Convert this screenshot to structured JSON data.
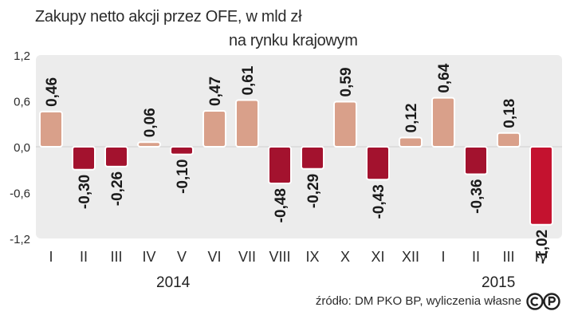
{
  "chart_data": {
    "type": "bar",
    "title": "Zakupy netto  akcji przez OFE, w mld zł",
    "subtitle": "na rynku krajowym",
    "categories": [
      "I",
      "II",
      "III",
      "IV",
      "V",
      "VI",
      "VII",
      "VIII",
      "IX",
      "X",
      "XI",
      "XII",
      "I",
      "II",
      "III",
      "IV"
    ],
    "values": [
      0.46,
      -0.3,
      -0.26,
      0.06,
      -0.1,
      0.47,
      0.61,
      -0.48,
      -0.29,
      0.59,
      -0.43,
      0.12,
      0.64,
      -0.36,
      0.18,
      -1.02
    ],
    "value_labels": [
      "0,46",
      "-0,30",
      "-0,26",
      "0,06",
      "-0,10",
      "0,47",
      "0,61",
      "-0,48",
      "-0,29",
      "0,59",
      "-0,43",
      "0,12",
      "0,64",
      "-0,36",
      "0,18",
      "-1,02"
    ],
    "year_groups": [
      "2014",
      "2015"
    ],
    "ylim": [
      -1.2,
      1.2
    ],
    "yticks": [
      1.2,
      0.6,
      0.0,
      -0.6,
      -1.2
    ],
    "ytick_labels": [
      "1,2",
      "0,6",
      "0,0",
      "-0,6",
      "-1,2"
    ],
    "grid": false,
    "colors": {
      "positive_fill": "#d9a08a",
      "positive_stroke": "#ffffff",
      "negative_fill": "#a3122e",
      "negative_stroke": "#ffffff",
      "last_negative_fill": "#c4122f",
      "plot_background": "#ececec",
      "label_text": "#1a1a1a"
    }
  },
  "footer": {
    "source": "źródło: DM PKO BP, wyliczenia własne",
    "license_icon": "cc-by-icon"
  }
}
